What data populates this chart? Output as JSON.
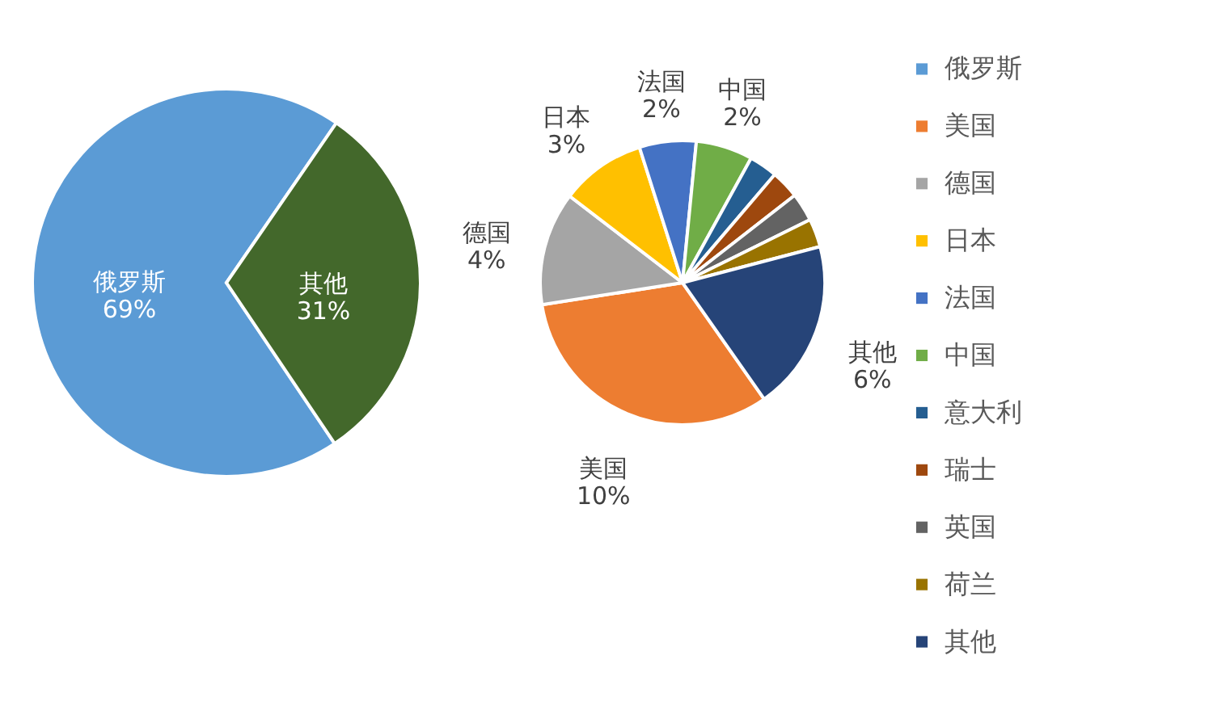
{
  "chart_data": [
    {
      "type": "pie",
      "categories": [
        "俄罗斯",
        "其他"
      ],
      "values": [
        69,
        31
      ],
      "colors": [
        "#5b9bd5",
        "#43682b"
      ],
      "value_labels": [
        "69%",
        "31%"
      ],
      "legend": "right"
    },
    {
      "type": "pie",
      "categories": [
        "美国",
        "德国",
        "日本",
        "法国",
        "中国",
        "意大利",
        "瑞士",
        "英国",
        "荷兰",
        "其他"
      ],
      "values": [
        10,
        4,
        3,
        2,
        2,
        1,
        1,
        1,
        1,
        6
      ],
      "colors": [
        "#ed7d31",
        "#a5a5a5",
        "#ffc000",
        "#4472c4",
        "#70ad47",
        "#255e91",
        "#9e480e",
        "#636363",
        "#997300",
        "#264478"
      ],
      "value_labels": [
        "10%",
        "4%",
        "3%",
        "2%",
        "2%",
        null,
        null,
        null,
        null,
        "6%"
      ],
      "legend": "right"
    }
  ]
}
